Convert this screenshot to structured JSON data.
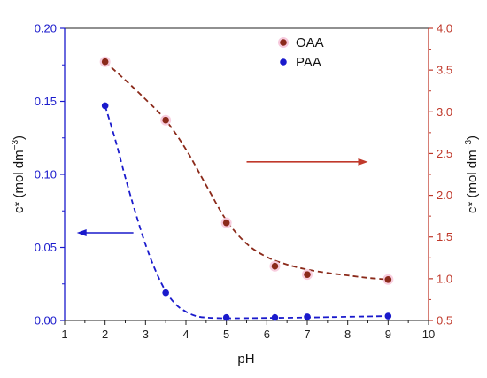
{
  "chart_data": {
    "type": "scatter",
    "xlabel": "pH",
    "ylabel_left": "c* (mol dm",
    "ylabel_right": "c* (mol dm",
    "ylabel_superscript": "−3",
    "ylabel_close": ")",
    "xlim": [
      1,
      10
    ],
    "xticks": [
      "1",
      "2",
      "3",
      "4",
      "5",
      "6",
      "7",
      "8",
      "9",
      "10"
    ],
    "ylim_left": [
      0,
      0.2
    ],
    "yticks_left": [
      "0.00",
      "0.05",
      "0.10",
      "0.15",
      "0.20"
    ],
    "ylim_right": [
      0.5,
      4.0
    ],
    "yticks_right": [
      "0.5",
      "1.0",
      "1.5",
      "2.0",
      "2.5",
      "3.0",
      "3.5",
      "4.0"
    ],
    "grid": false,
    "legend_position": "top-right",
    "colors": {
      "left_axis": "#1a1acc",
      "right_axis": "#c0392b",
      "oaa": "#8b2a1a",
      "paa": "#1a1acc",
      "arrow_right": "#c0392b",
      "arrow_left": "#1a1acc"
    },
    "series": [
      {
        "name": "OAA",
        "axis": "right",
        "x": [
          2,
          3.5,
          5,
          6.2,
          7,
          9
        ],
        "y": [
          3.6,
          2.9,
          1.67,
          1.15,
          1.05,
          0.99
        ],
        "fit_x": [
          2,
          2.5,
          3,
          3.5,
          4,
          4.5,
          5,
          5.5,
          6,
          6.5,
          7,
          7.5,
          8,
          8.5,
          9
        ],
        "fit_y": [
          3.6,
          3.38,
          3.15,
          2.9,
          2.55,
          2.12,
          1.7,
          1.42,
          1.26,
          1.17,
          1.11,
          1.07,
          1.04,
          1.01,
          0.99
        ]
      },
      {
        "name": "PAA",
        "axis": "left",
        "x": [
          2,
          3.5,
          5,
          6.2,
          7,
          9
        ],
        "y": [
          0.147,
          0.019,
          0.002,
          0.002,
          0.0025,
          0.003
        ],
        "fit_x": [
          2,
          2.25,
          2.5,
          2.75,
          3,
          3.25,
          3.5,
          3.75,
          4,
          4.25,
          4.5,
          5,
          6,
          7,
          8,
          9
        ],
        "fit_y": [
          0.147,
          0.124,
          0.098,
          0.074,
          0.052,
          0.034,
          0.02,
          0.011,
          0.006,
          0.003,
          0.002,
          0.0015,
          0.0017,
          0.002,
          0.0025,
          0.003
        ]
      }
    ],
    "annotations": [
      {
        "type": "arrow",
        "target_axis": "right",
        "x_from": 5.5,
        "x_to": 8.5,
        "y": 2.4
      },
      {
        "type": "arrow",
        "target_axis": "left",
        "x_from": 2.7,
        "x_to": 1.3,
        "y": 0.06
      }
    ]
  }
}
